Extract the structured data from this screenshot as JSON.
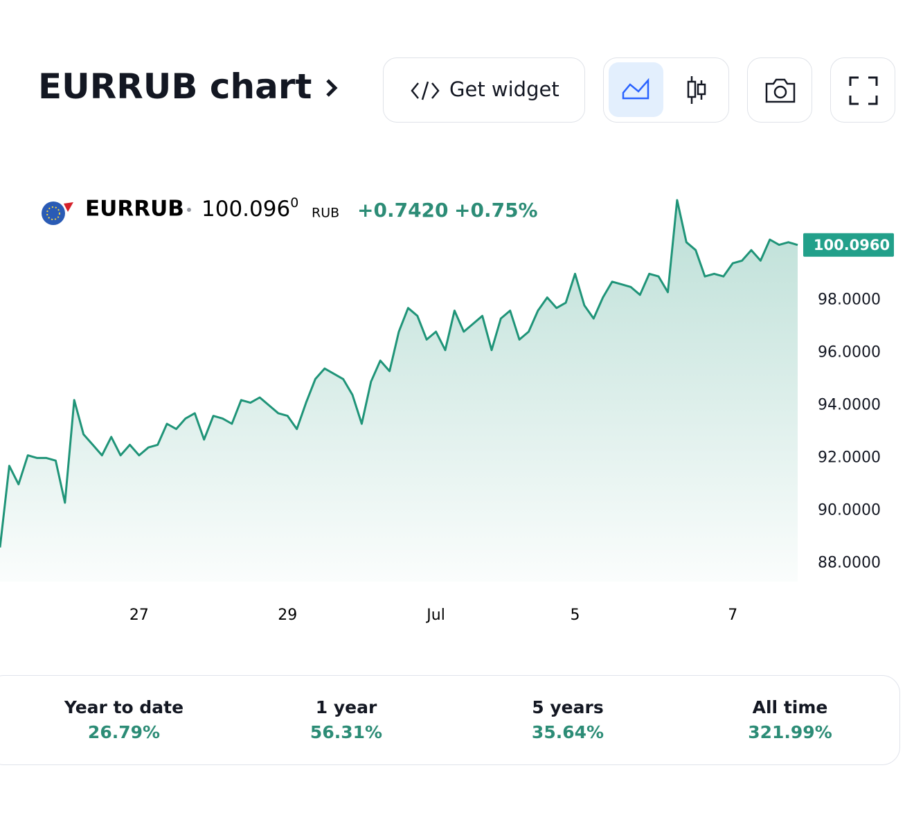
{
  "header": {
    "title": "EURRUB chart",
    "widget_button": "Get widget"
  },
  "legend": {
    "symbol": "EURRUB",
    "price": "100.096",
    "price_sup": "0",
    "currency": "RUB",
    "change": "+0.7420",
    "change_pct": "+0.75%"
  },
  "chart_data": {
    "type": "area",
    "color": "#1f9478",
    "categories": [
      null,
      null,
      null,
      null,
      null,
      null,
      null,
      null,
      null,
      null,
      null,
      null,
      null,
      null,
      null,
      "27",
      null,
      null,
      null,
      null,
      null,
      null,
      null,
      null,
      null,
      null,
      null,
      null,
      null,
      null,
      null,
      "29",
      null,
      null,
      null,
      null,
      null,
      null,
      null,
      null,
      null,
      null,
      null,
      null,
      null,
      null,
      null,
      "Jul",
      null,
      null,
      null,
      null,
      null,
      null,
      null,
      null,
      null,
      null,
      null,
      null,
      null,
      null,
      "5",
      null,
      null,
      null,
      null,
      null,
      null,
      null,
      null,
      null,
      null,
      null,
      null,
      null,
      null,
      null,
      null,
      "7",
      null,
      null,
      null,
      null,
      null,
      null,
      null
    ],
    "values": [
      88.6,
      91.7,
      91.0,
      92.1,
      92.0,
      92.0,
      91.9,
      90.3,
      94.2,
      92.9,
      92.5,
      92.1,
      92.8,
      92.1,
      92.5,
      92.1,
      92.4,
      92.5,
      93.3,
      93.1,
      93.5,
      93.7,
      92.7,
      93.6,
      93.5,
      93.3,
      94.2,
      94.1,
      94.3,
      94.0,
      93.7,
      93.6,
      93.1,
      94.1,
      95.0,
      95.4,
      95.2,
      95.0,
      94.4,
      93.3,
      94.9,
      95.7,
      95.3,
      96.8,
      97.7,
      97.4,
      96.5,
      96.8,
      96.1,
      97.6,
      96.8,
      97.1,
      97.4,
      96.1,
      97.3,
      97.6,
      96.5,
      96.8,
      97.6,
      98.1,
      97.7,
      97.9,
      99.0,
      97.8,
      97.3,
      98.1,
      98.7,
      98.6,
      98.5,
      98.2,
      99.0,
      98.9,
      98.3,
      101.8,
      100.2,
      99.9,
      98.9,
      99.0,
      98.9,
      99.4,
      99.5,
      99.9,
      99.5,
      100.3,
      100.1,
      100.2,
      100.096
    ],
    "last_value_label": "100.0960",
    "ylim": [
      87.3,
      102.3
    ],
    "yticks": [
      {
        "value": 88,
        "label": "88.0000"
      },
      {
        "value": 90,
        "label": "90.0000"
      },
      {
        "value": 92,
        "label": "92.0000"
      },
      {
        "value": 94,
        "label": "94.0000"
      },
      {
        "value": 96,
        "label": "96.0000"
      },
      {
        "value": 98,
        "label": "98.0000"
      }
    ]
  },
  "performance": [
    {
      "label": "Year to date",
      "value": "26.79%"
    },
    {
      "label": "1 year",
      "value": "56.31%"
    },
    {
      "label": "5 years",
      "value": "35.64%"
    },
    {
      "label": "All time",
      "value": "321.99%"
    }
  ]
}
